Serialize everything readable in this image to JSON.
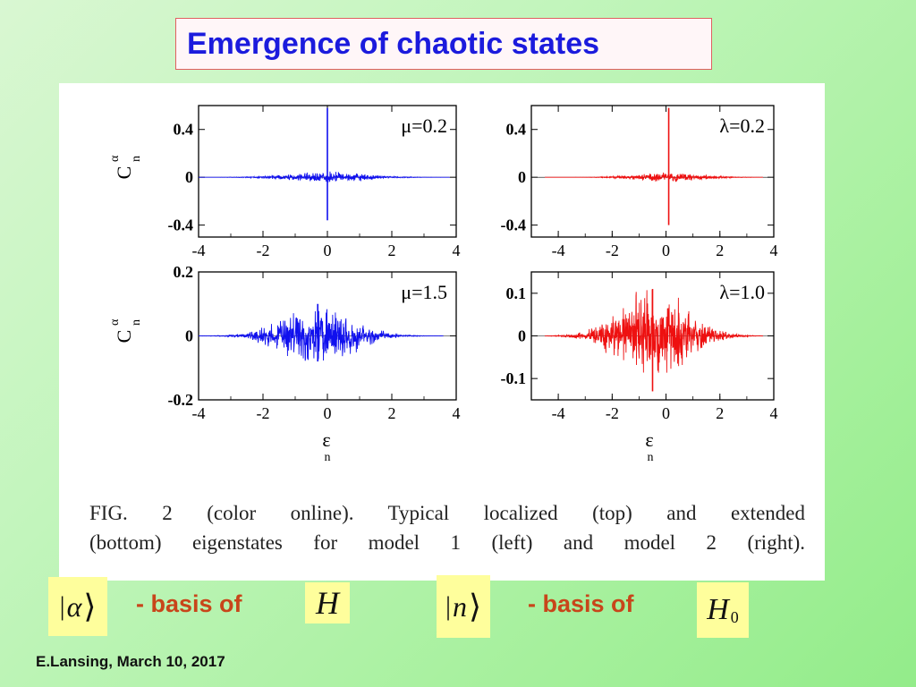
{
  "slide": {
    "title": "Emergence of chaotic states",
    "footer": "E.Lansing, March 10, 2017"
  },
  "figure": {
    "caption_line1": "FIG. 2 (color online).   Typical localized (top) and extended",
    "caption_line2": "(bottom) eigenstates for model 1 (left) and model 2 (right).",
    "ylabel": "C",
    "ylabel_sup": "α",
    "ylabel_sub": "n",
    "xlabel": "ε",
    "xlabel_sub": "n"
  },
  "chart_data": [
    {
      "type": "line",
      "panel": "top-left",
      "annotation": "μ=0.2",
      "color": "#1010ee",
      "xlim": [
        -4,
        4
      ],
      "ylim": [
        -0.5,
        0.6
      ],
      "xticks": [
        "-4",
        "-2",
        "0",
        "2",
        "4"
      ],
      "yticks": [
        "0.4",
        "0",
        "-0.4"
      ],
      "ytick_values": [
        0.4,
        0,
        -0.4
      ],
      "x_extent": [
        -4,
        3.8
      ],
      "peak_x": 0.0,
      "peak_max": 0.58,
      "peak_min": -0.36,
      "spread": 1.6,
      "base_amp": 0.04
    },
    {
      "type": "line",
      "panel": "top-right",
      "annotation": "λ=0.2",
      "color": "#ee1010",
      "xlim": [
        -5,
        4
      ],
      "ylim": [
        -0.5,
        0.6
      ],
      "xticks": [
        "-4",
        "-2",
        "0",
        "2",
        "4"
      ],
      "yticks": [
        "0.4",
        "0",
        "-0.4"
      ],
      "ytick_values": [
        0.4,
        0,
        -0.4
      ],
      "x_extent": [
        -4.5,
        3.6
      ],
      "peak_x": 0.1,
      "peak_max": 0.58,
      "peak_min": -0.4,
      "spread": 1.6,
      "base_amp": 0.035
    },
    {
      "type": "line",
      "panel": "bottom-left",
      "annotation": "μ=1.5",
      "color": "#1010ee",
      "xlim": [
        -4,
        4
      ],
      "ylim": [
        -0.2,
        0.2
      ],
      "xticks": [
        "-4",
        "-2",
        "0",
        "2",
        "4"
      ],
      "yticks": [
        "0.2",
        "0",
        "-0.2"
      ],
      "ytick_values": [
        0.2,
        0,
        -0.2
      ],
      "x_extent": [
        -4,
        3.6
      ],
      "peak_x": -0.3,
      "peak_max": 0.1,
      "peak_min": -0.08,
      "spread": 1.5,
      "base_amp": 0.085
    },
    {
      "type": "line",
      "panel": "bottom-right",
      "annotation": "λ=1.0",
      "color": "#ee1010",
      "xlim": [
        -5,
        4
      ],
      "ylim": [
        -0.15,
        0.15
      ],
      "xticks": [
        "-4",
        "-2",
        "0",
        "2",
        "4"
      ],
      "yticks": [
        "0.1",
        "0",
        "-0.1"
      ],
      "ytick_values": [
        0.1,
        0,
        -0.1
      ],
      "x_extent": [
        -4.5,
        3.6
      ],
      "peak_x": -0.5,
      "peak_max": 0.11,
      "peak_min": -0.13,
      "spread": 1.7,
      "base_amp": 0.1
    }
  ],
  "legend": {
    "ket_alpha": "α",
    "basis_text_1": "- basis of",
    "H": "H",
    "ket_n": "n",
    "basis_text_2": "- basis of",
    "H0_main": "H",
    "H0_sub": "0"
  },
  "colors": {
    "title_text": "#1b1bdd",
    "title_border": "#e06060",
    "basis_text": "#c8451a",
    "math_box": "#fefe9c",
    "blue_series": "#1010ee",
    "red_series": "#ee1010"
  }
}
